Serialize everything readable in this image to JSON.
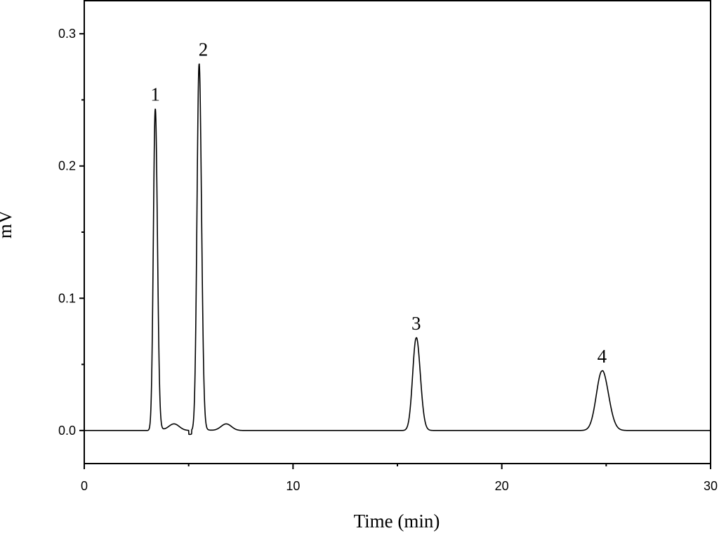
{
  "chart_data": {
    "type": "line",
    "xlabel": "Time (min)",
    "ylabel": "mV",
    "xlim": [
      0,
      30
    ],
    "ylim": [
      -0.025,
      0.325
    ],
    "x_ticks": [
      0,
      10,
      20,
      30
    ],
    "x_tick_labels": [
      "0",
      "10",
      "20",
      "30"
    ],
    "y_ticks": [
      0.0,
      0.1,
      0.2,
      0.3
    ],
    "y_tick_labels": [
      "0.0",
      "0.1",
      "0.2",
      "0.3"
    ],
    "grid": false,
    "legend": "none",
    "series": [
      {
        "peaks": [
          {
            "label": "1",
            "time": 3.4,
            "height": 0.243
          },
          {
            "label": "2",
            "time": 5.5,
            "height": 0.277
          },
          {
            "label": "3",
            "time": 15.9,
            "height": 0.07
          },
          {
            "label": "4",
            "time": 24.8,
            "height": 0.045
          }
        ],
        "minor_bumps": [
          {
            "time": 4.3,
            "height": 0.005
          },
          {
            "time": 6.8,
            "height": 0.005
          }
        ]
      }
    ]
  }
}
